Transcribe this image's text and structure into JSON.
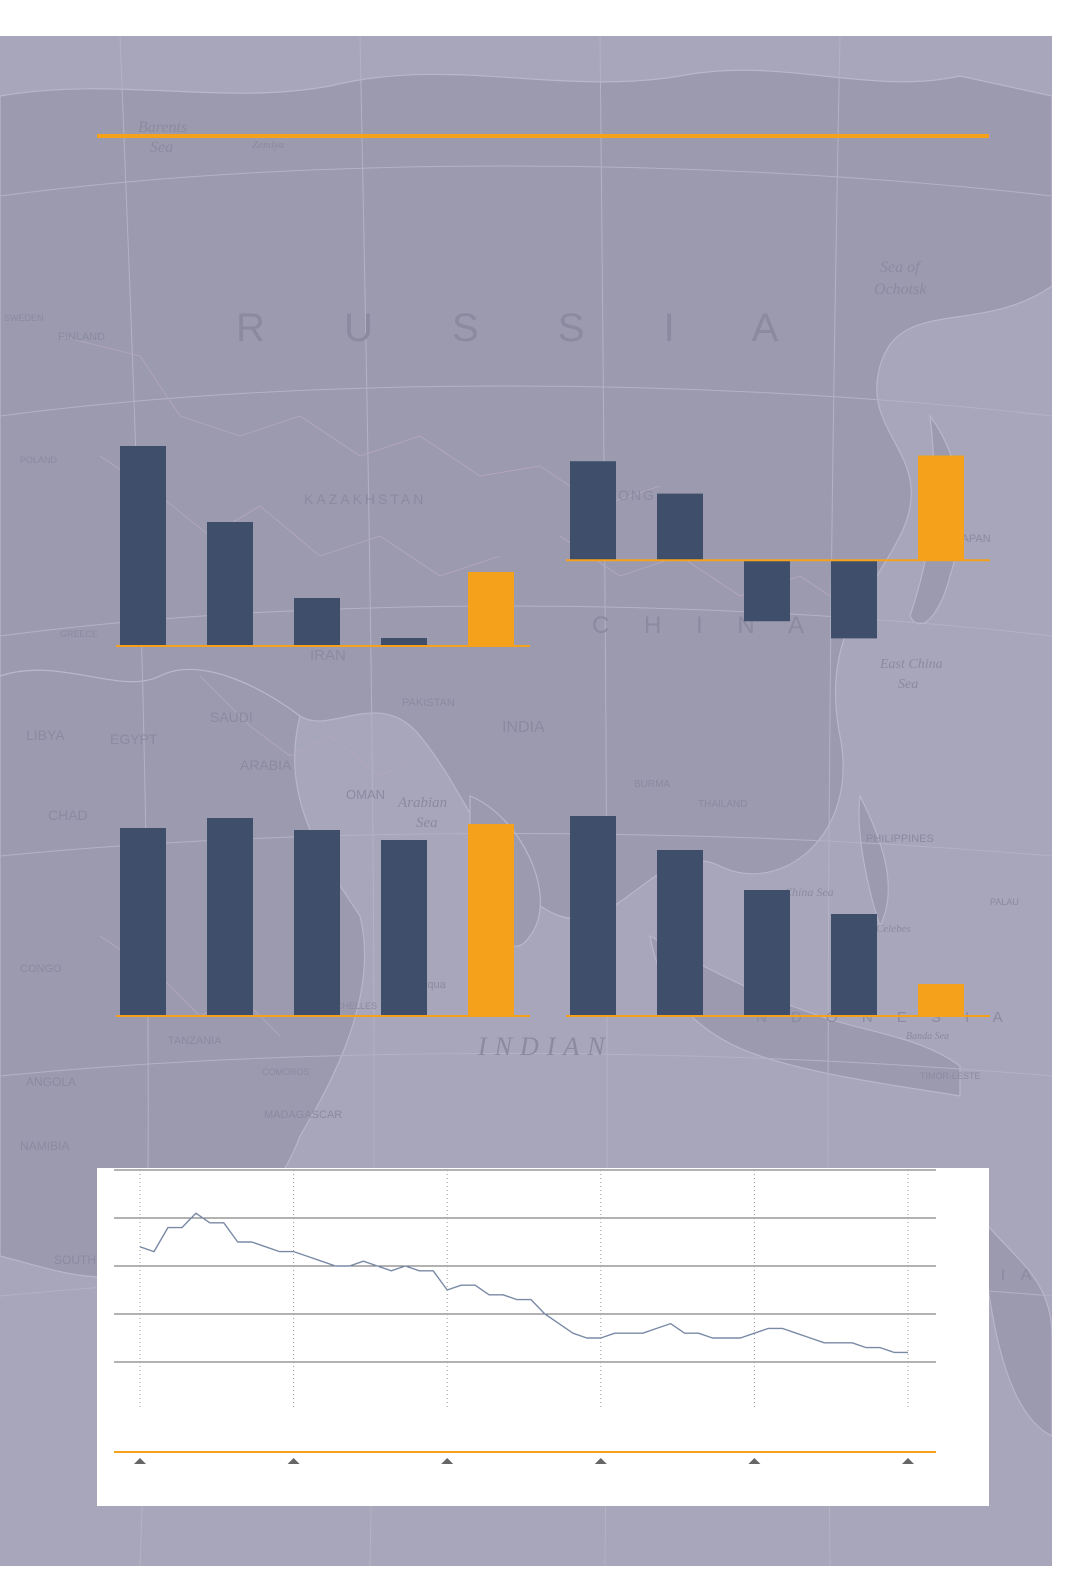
{
  "map_labels": {
    "barents": "Barents",
    "barents2": "Sea",
    "zemlya": "Zemlya",
    "russia": "R U S S I A",
    "kazakhstan": "KAZAKHSTAN",
    "china": "C H I N A",
    "iran": "IRAN",
    "saudi": "SAUDI",
    "arabia": "ARABIA",
    "pakistan": "PAKISTAN",
    "india": "INDIA",
    "oman": "OMAN",
    "arabian": "Arabian",
    "arabian2": "Sea",
    "indian": "INDIAN",
    "indonesia": "N D O N E S I A",
    "libya": "LIBYA",
    "egypt": "EGYPT",
    "chad": "CHAD",
    "tanzania": "TANZANIA",
    "angola": "ANGOLA",
    "namibia": "NAMIBIA",
    "madagascar": "MADAGASCAR",
    "finland": "FINLAND",
    "sweden": "SWEDEN",
    "poland": "POLAND",
    "greece": "GREECE",
    "japan": "JAPAN",
    "philippines": "PHILIPPINES",
    "palau": "PALAU",
    "okhotsk": "Sea of",
    "okhotsk2": "Ochotsk",
    "eastchina": "East China",
    "eastchina2": "Sea",
    "southchina": "China Sea",
    "celebes": "Celebes",
    "banda": "Banda Sea",
    "timor": "TIMOR-LESTE",
    "kong": "ONG",
    "equator": "Equa",
    "burma": "BURMA",
    "thailand": "THAILAND",
    "congo": "CONGO",
    "seychelles": "SEYCHELLES",
    "comoros": "COMOROS",
    "southafrica": "SOUTH A",
    "lia": "L I A"
  },
  "colors": {
    "bar": "#3f4f6b",
    "highlight": "#f5a11c",
    "line": "#7a8aa6",
    "grid": "#666666",
    "panel": "#a7a6ba"
  },
  "chart_data": [
    {
      "type": "bar",
      "position": "top-left",
      "values": [
        100,
        62,
        24,
        4,
        37
      ],
      "highlight_index": 4,
      "ylim": [
        0,
        100
      ]
    },
    {
      "type": "bar",
      "position": "top-right",
      "values": [
        52,
        35,
        -32,
        -41,
        55
      ],
      "highlight_index": 4,
      "ylim": [
        -45,
        60
      ]
    },
    {
      "type": "bar",
      "position": "bottom-left",
      "values": [
        94,
        99,
        93,
        88,
        96
      ],
      "highlight_index": 4,
      "ylim": [
        0,
        100
      ]
    },
    {
      "type": "bar",
      "position": "bottom-right",
      "values": [
        100,
        83,
        63,
        51,
        16
      ],
      "highlight_index": 4,
      "ylim": [
        0,
        100
      ]
    },
    {
      "type": "line",
      "position": "bottom",
      "grid": true,
      "x_divisions": 5,
      "ylim": [
        0,
        5
      ],
      "values": [
        3.4,
        3.3,
        3.8,
        3.8,
        4.1,
        3.9,
        3.9,
        3.5,
        3.5,
        3.4,
        3.3,
        3.3,
        3.2,
        3.1,
        3.0,
        3.0,
        3.1,
        3.0,
        2.9,
        3.0,
        2.9,
        2.9,
        2.5,
        2.6,
        2.6,
        2.4,
        2.4,
        2.3,
        2.3,
        2.0,
        1.8,
        1.6,
        1.5,
        1.5,
        1.6,
        1.6,
        1.6,
        1.7,
        1.8,
        1.6,
        1.6,
        1.5,
        1.5,
        1.5,
        1.6,
        1.7,
        1.7,
        1.6,
        1.5,
        1.4,
        1.4,
        1.4,
        1.3,
        1.3,
        1.2,
        1.2
      ]
    }
  ]
}
